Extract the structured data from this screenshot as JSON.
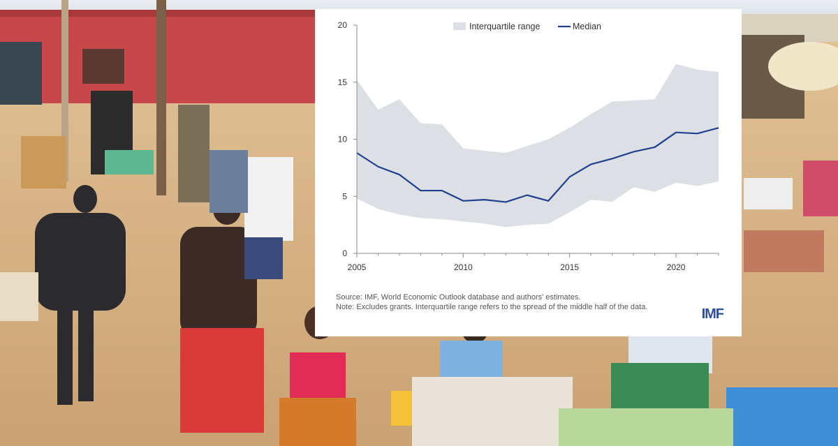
{
  "background": {
    "description_icon": "market-photo-icon"
  },
  "chart_data": {
    "type": "line",
    "title": "",
    "xlabel": "",
    "ylabel": "",
    "xlim": [
      2005,
      2022
    ],
    "ylim": [
      0,
      20
    ],
    "xticks": [
      2005,
      2010,
      2015,
      2020
    ],
    "yticks": [
      0,
      5,
      10,
      15,
      20
    ],
    "grid": false,
    "legend_position": "top-center",
    "x": [
      2005,
      2006,
      2007,
      2008,
      2009,
      2010,
      2011,
      2012,
      2013,
      2014,
      2015,
      2016,
      2017,
      2018,
      2019,
      2020,
      2021,
      2022
    ],
    "series": [
      {
        "name": "Interquartile range",
        "kind": "band",
        "color": "#dcdfe4",
        "upper": [
          15.2,
          12.6,
          13.5,
          11.4,
          11.3,
          9.2,
          9.0,
          8.8,
          9.4,
          10.0,
          11.0,
          12.2,
          13.3,
          13.4,
          13.5,
          16.6,
          16.1,
          15.9
        ],
        "lower": [
          4.8,
          3.9,
          3.4,
          3.1,
          3.0,
          2.8,
          2.6,
          2.3,
          2.5,
          2.6,
          3.6,
          4.7,
          4.5,
          5.8,
          5.4,
          6.2,
          5.9,
          6.3
        ]
      },
      {
        "name": "Median",
        "kind": "line",
        "color": "#1f3f8f",
        "values": [
          8.8,
          7.6,
          6.9,
          5.5,
          5.5,
          4.6,
          4.7,
          4.5,
          5.1,
          4.6,
          6.7,
          7.8,
          8.3,
          8.9,
          9.3,
          10.6,
          10.5,
          11.0
        ]
      }
    ]
  },
  "notes": {
    "source": "Source: IMF, World Economic Outlook database and authors' estimates.",
    "note": "Note: Excludes grants. Interquartile range refers to the spread of the middle half of the data."
  },
  "logo": {
    "text": "IMF",
    "icon": "imf-logo-icon"
  },
  "colors": {
    "axis": "#888888",
    "text": "#333333",
    "card": "#ffffff",
    "logo": "#2b4f9e"
  }
}
